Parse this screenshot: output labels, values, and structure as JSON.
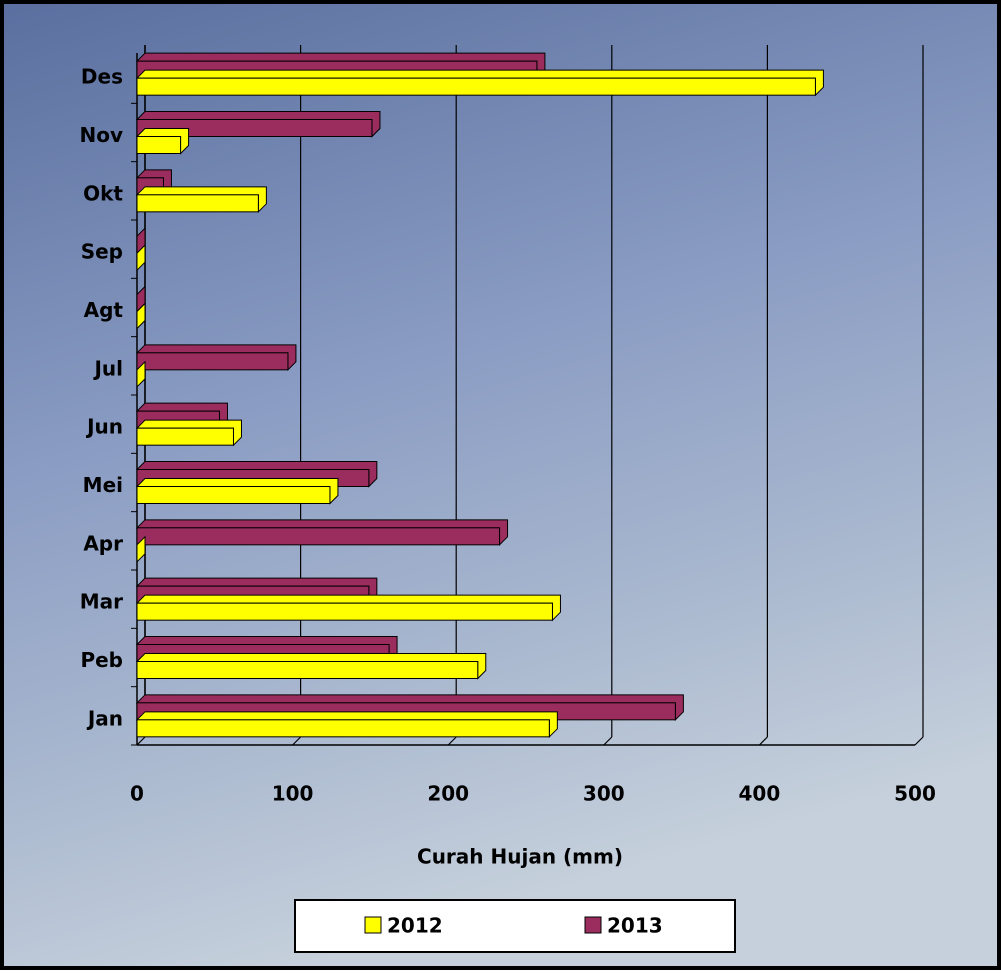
{
  "chart_data": {
    "type": "bar",
    "orientation": "horizontal",
    "categories": [
      "Jan",
      "Peb",
      "Mar",
      "Apr",
      "Mei",
      "Jun",
      "Jul",
      "Agt",
      "Sep",
      "Okt",
      "Nov",
      "Des"
    ],
    "series": [
      {
        "name": "2012",
        "color": "#ffff00",
        "values": [
          265,
          219,
          267,
          0,
          124,
          62,
          0,
          0,
          0,
          78,
          28,
          436
        ]
      },
      {
        "name": "2013",
        "color": "#9b2d5e",
        "values": [
          346,
          162,
          149,
          233,
          149,
          53,
          97,
          0,
          0,
          17,
          151,
          257
        ]
      }
    ],
    "x_label": "Curah Hujan (mm)",
    "xlim": [
      0,
      500
    ],
    "xticks": [
      0,
      100,
      200,
      300,
      400,
      500
    ],
    "grid": true
  }
}
